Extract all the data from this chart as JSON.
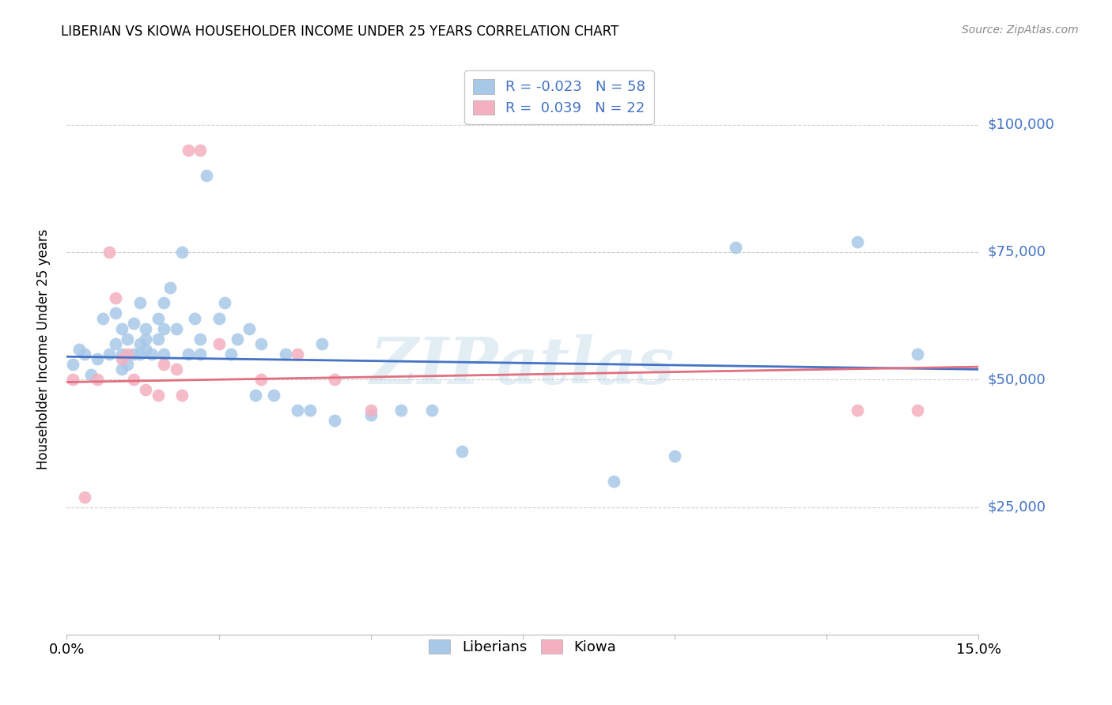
{
  "title": "LIBERIAN VS KIOWA HOUSEHOLDER INCOME UNDER 25 YEARS CORRELATION CHART",
  "source": "Source: ZipAtlas.com",
  "ylabel": "Householder Income Under 25 years",
  "ytick_labels": [
    "$25,000",
    "$50,000",
    "$75,000",
    "$100,000"
  ],
  "ytick_values": [
    25000,
    50000,
    75000,
    100000
  ],
  "ylim": [
    0,
    112000
  ],
  "xlim": [
    0.0,
    0.15
  ],
  "watermark": "ZIPatlas",
  "liberian_color": "#a8c8e8",
  "kiowa_color": "#f4b0c0",
  "liberian_line_color": "#4472c4",
  "kiowa_line_color": "#e07080",
  "liberian_R": -0.023,
  "liberian_N": 58,
  "kiowa_R": 0.039,
  "kiowa_N": 22,
  "lib_line_x0": 0.0,
  "lib_line_y0": 54500,
  "lib_line_x1": 0.15,
  "lib_line_y1": 52000,
  "kio_line_x0": 0.0,
  "kio_line_y0": 49500,
  "kio_line_x1": 0.15,
  "kio_line_y1": 52500,
  "liberian_x": [
    0.001,
    0.002,
    0.003,
    0.004,
    0.005,
    0.006,
    0.007,
    0.008,
    0.008,
    0.009,
    0.009,
    0.009,
    0.01,
    0.01,
    0.011,
    0.011,
    0.012,
    0.012,
    0.012,
    0.013,
    0.013,
    0.013,
    0.014,
    0.015,
    0.015,
    0.016,
    0.016,
    0.016,
    0.017,
    0.018,
    0.019,
    0.02,
    0.021,
    0.022,
    0.022,
    0.023,
    0.025,
    0.026,
    0.027,
    0.028,
    0.03,
    0.031,
    0.032,
    0.034,
    0.036,
    0.038,
    0.04,
    0.042,
    0.044,
    0.05,
    0.055,
    0.06,
    0.065,
    0.09,
    0.1,
    0.11,
    0.13,
    0.14
  ],
  "liberian_y": [
    53000,
    56000,
    55000,
    51000,
    54000,
    62000,
    55000,
    63000,
    57000,
    60000,
    55000,
    52000,
    58000,
    53000,
    61000,
    55000,
    65000,
    57000,
    55000,
    56000,
    58000,
    60000,
    55000,
    62000,
    58000,
    65000,
    60000,
    55000,
    68000,
    60000,
    75000,
    55000,
    62000,
    58000,
    55000,
    90000,
    62000,
    65000,
    55000,
    58000,
    60000,
    47000,
    57000,
    47000,
    55000,
    44000,
    44000,
    57000,
    42000,
    43000,
    44000,
    44000,
    36000,
    30000,
    35000,
    76000,
    77000,
    55000
  ],
  "kiowa_x": [
    0.001,
    0.003,
    0.005,
    0.007,
    0.008,
    0.009,
    0.01,
    0.011,
    0.013,
    0.015,
    0.016,
    0.018,
    0.019,
    0.02,
    0.022,
    0.025,
    0.032,
    0.038,
    0.044,
    0.05,
    0.13,
    0.14
  ],
  "kiowa_y": [
    50000,
    27000,
    50000,
    75000,
    66000,
    54000,
    55000,
    50000,
    48000,
    47000,
    53000,
    52000,
    47000,
    95000,
    95000,
    57000,
    50000,
    55000,
    50000,
    44000,
    44000,
    44000
  ]
}
